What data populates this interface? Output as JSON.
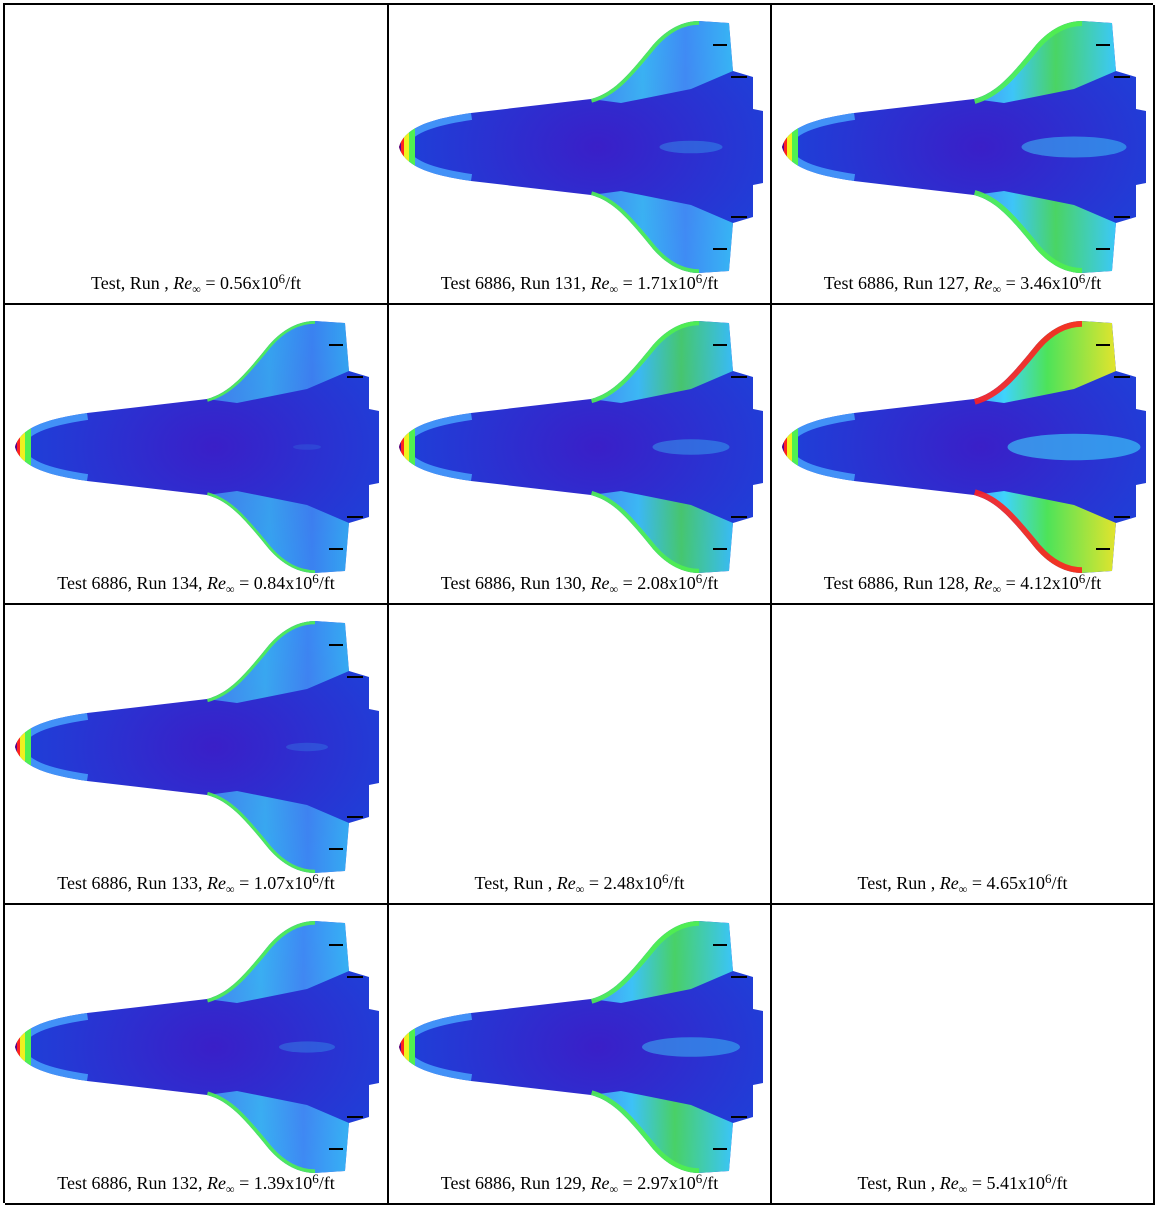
{
  "grid": {
    "cells": [
      {
        "test": "Test",
        "testnum": "",
        "run": "Run",
        "runnum": "",
        "re": "0.56",
        "has_image": false,
        "intensity": 0
      },
      {
        "test": "Test",
        "testnum": "6886",
        "run": "Run",
        "runnum": "131",
        "re": "1.71",
        "has_image": true,
        "intensity": 0.45
      },
      {
        "test": "Test",
        "testnum": "6886",
        "run": "Run",
        "runnum": "127",
        "re": "3.46",
        "has_image": true,
        "intensity": 0.75
      },
      {
        "test": "Test",
        "testnum": "6886",
        "run": "Run",
        "runnum": "134",
        "re": "0.84",
        "has_image": true,
        "intensity": 0.2
      },
      {
        "test": "Test",
        "testnum": "6886",
        "run": "Run",
        "runnum": "130",
        "re": "2.08",
        "has_image": true,
        "intensity": 0.55
      },
      {
        "test": "Test",
        "testnum": "6886",
        "run": "Run",
        "runnum": "128",
        "re": "4.12",
        "has_image": true,
        "intensity": 0.95
      },
      {
        "test": "Test",
        "testnum": "6886",
        "run": "Run",
        "runnum": "133",
        "re": "1.07",
        "has_image": true,
        "intensity": 0.3
      },
      {
        "test": "Test",
        "testnum": "",
        "run": "Run",
        "runnum": "",
        "re": "2.48",
        "has_image": false,
        "intensity": 0
      },
      {
        "test": "Test",
        "testnum": "",
        "run": "Run",
        "runnum": "",
        "re": "4.65",
        "has_image": false,
        "intensity": 0
      },
      {
        "test": "Test",
        "testnum": "6886",
        "run": "Run",
        "runnum": "132",
        "re": "1.39",
        "has_image": true,
        "intensity": 0.4
      },
      {
        "test": "Test",
        "testnum": "6886",
        "run": "Run",
        "runnum": "129",
        "re": "2.97",
        "has_image": true,
        "intensity": 0.7
      },
      {
        "test": "Test",
        "testnum": "",
        "run": "Run",
        "runnum": "",
        "re": "5.41",
        "has_image": false,
        "intensity": 0
      }
    ],
    "symbol_re": "Re",
    "symbol_inf": "∞",
    "exp_base": "x10",
    "exp": "6",
    "unit": "/ft",
    "colors": {
      "body": "#1f3fd8",
      "body_core": "#3a1fc8",
      "light": "#4aa8ff",
      "cyan": "#40e0ff",
      "green": "#50f050",
      "yellow": "#f0f020",
      "red": "#ff2020",
      "purple": "#5a0090"
    }
  }
}
